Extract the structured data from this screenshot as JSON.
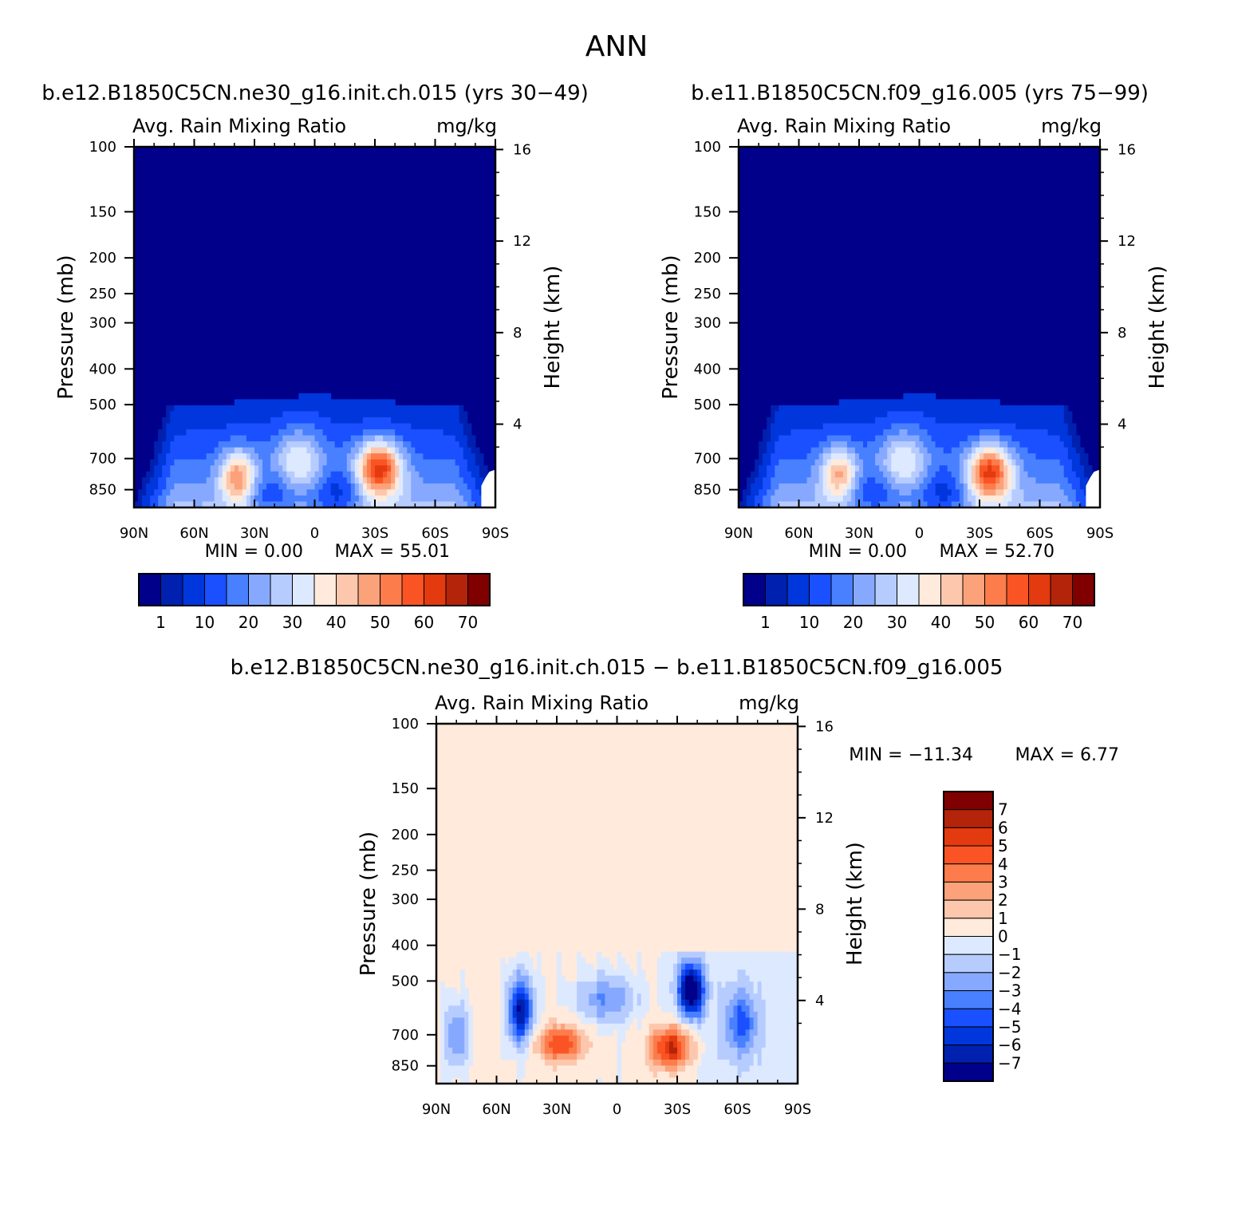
{
  "title": "ANN",
  "colors": {
    "seq": [
      "#00008b",
      "#0020b0",
      "#0037dc",
      "#1a50ff",
      "#4880ff",
      "#86a9ff",
      "#b6ccff",
      "#dde9ff",
      "#ffeadb",
      "#fcc7ad",
      "#fca27a",
      "#fc7c4c",
      "#fb5424",
      "#e33a0f",
      "#b4240a",
      "#800000"
    ],
    "diff": [
      "#00008b",
      "#0020b0",
      "#0037dc",
      "#1a50ff",
      "#4880ff",
      "#86a9ff",
      "#b6ccff",
      "#dde9ff",
      "#ffeadb",
      "#fcc7ad",
      "#fca27a",
      "#fc7c4c",
      "#fb5424",
      "#e33a0f",
      "#b4240a",
      "#800000"
    ]
  },
  "chart_data": [
    {
      "type": "contour",
      "id": "panel1",
      "title": "b.e12.B1850C5CN.ne30_g16.init.ch.015 (yrs 30−49)",
      "variable": "Avg. Rain Mixing Ratio",
      "units": "mg/kg",
      "ylabel": "Pressure (mb)",
      "ylabel_right": "Height (km)",
      "x_ticks": [
        "90N",
        "60N",
        "30N",
        "0",
        "30S",
        "60S",
        "90S"
      ],
      "x_values": [
        90,
        60,
        30,
        0,
        -30,
        -60,
        -90
      ],
      "y_ticks": [
        "100",
        "150",
        "200",
        "250",
        "300",
        "400",
        "500",
        "700",
        "850"
      ],
      "y_values": [
        100,
        150,
        200,
        250,
        300,
        400,
        500,
        700,
        850
      ],
      "ylim": [
        100,
        950
      ],
      "height_ticks": [
        "16",
        "12",
        "8",
        "4"
      ],
      "height_values": [
        16,
        12,
        8,
        4
      ],
      "min_text": "MIN =    0.00",
      "max_text": "MAX =   55.01",
      "min": 0.0,
      "max": 55.01,
      "colorbar_labels": [
        "1",
        "10",
        "20",
        "30",
        "40",
        "50",
        "60",
        "70"
      ],
      "maxima": [
        {
          "lat": -32,
          "p": 745,
          "value": 55
        },
        {
          "lat": 38,
          "p": 790,
          "value": 44
        },
        {
          "lat": 8,
          "p": 720,
          "value": 30
        }
      ]
    },
    {
      "type": "contour",
      "id": "panel2",
      "title": "b.e11.B1850C5CN.f09_g16.005 (yrs 75−99)",
      "variable": "Avg. Rain Mixing Ratio",
      "units": "mg/kg",
      "ylabel": "Pressure (mb)",
      "ylabel_right": "Height (km)",
      "x_ticks": [
        "90N",
        "60N",
        "30N",
        "0",
        "30S",
        "60S",
        "90S"
      ],
      "x_values": [
        90,
        60,
        30,
        0,
        -30,
        -60,
        -90
      ],
      "y_ticks": [
        "100",
        "150",
        "200",
        "250",
        "300",
        "400",
        "500",
        "700",
        "850"
      ],
      "y_values": [
        100,
        150,
        200,
        250,
        300,
        400,
        500,
        700,
        850
      ],
      "ylim": [
        100,
        950
      ],
      "height_ticks": [
        "16",
        "12",
        "8",
        "4"
      ],
      "height_values": [
        16,
        12,
        8,
        4
      ],
      "min_text": "MIN =    0.00",
      "max_text": "MAX =   52.70",
      "min": 0.0,
      "max": 52.7,
      "colorbar_labels": [
        "1",
        "10",
        "20",
        "30",
        "40",
        "50",
        "60",
        "70"
      ],
      "maxima": [
        {
          "lat": -35,
          "p": 760,
          "value": 52.7
        },
        {
          "lat": 40,
          "p": 770,
          "value": 40
        },
        {
          "lat": 8,
          "p": 720,
          "value": 30
        }
      ]
    },
    {
      "type": "contour",
      "id": "panel3",
      "title": "b.e12.B1850C5CN.ne30_g16.init.ch.015 − b.e11.B1850C5CN.f09_g16.005",
      "variable": "Avg. Rain Mixing Ratio",
      "units": "mg/kg",
      "ylabel": "Pressure (mb)",
      "ylabel_right": "Height (km)",
      "x_ticks": [
        "90N",
        "60N",
        "30N",
        "0",
        "30S",
        "60S",
        "90S"
      ],
      "x_values": [
        90,
        60,
        30,
        0,
        -30,
        -60,
        -90
      ],
      "y_ticks": [
        "100",
        "150",
        "200",
        "250",
        "300",
        "400",
        "500",
        "700",
        "850"
      ],
      "y_values": [
        100,
        150,
        200,
        250,
        300,
        400,
        500,
        700,
        850
      ],
      "ylim": [
        100,
        950
      ],
      "height_ticks": [
        "16",
        "12",
        "8",
        "4"
      ],
      "height_values": [
        16,
        12,
        8,
        4
      ],
      "min_text": "MIN = −11.34",
      "max_text": "MAX =    6.77",
      "min": -11.34,
      "max": 6.77,
      "colorbar_labels": [
        "7",
        "6",
        "5",
        "4",
        "3",
        "2",
        "1",
        "0",
        "−1",
        "−2",
        "−3",
        "−4",
        "−5",
        "−6",
        "−7"
      ],
      "maxima": [
        {
          "lat": -27,
          "p": 760,
          "value": 6.77
        },
        {
          "lat": 28,
          "p": 740,
          "value": 5
        },
        {
          "lat": -37,
          "p": 530,
          "value": -11.34
        },
        {
          "lat": 48,
          "p": 600,
          "value": -8
        }
      ]
    }
  ]
}
